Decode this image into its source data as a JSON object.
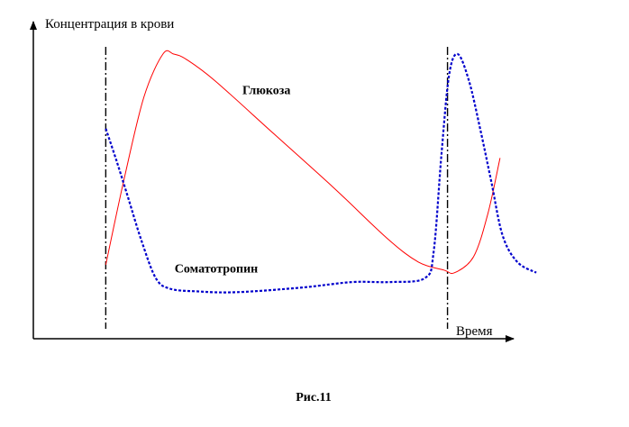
{
  "chart_data": {
    "type": "line",
    "ylabel": "Концентрация в крови",
    "xlabel": "Время",
    "caption": "Рис.11",
    "xlim": [
      0,
      100
    ],
    "ylim": [
      0,
      100
    ],
    "grid": false,
    "series": [
      {
        "name": "Глюкоза",
        "color": "#ff0000",
        "style": "solid",
        "points": [
          [
            14.2,
            21
          ],
          [
            17.9,
            54
          ],
          [
            21.7,
            84
          ],
          [
            25.4,
            100
          ],
          [
            27.5,
            100
          ],
          [
            30.0,
            98
          ],
          [
            35.6,
            90
          ],
          [
            47.2,
            70
          ],
          [
            58.8,
            50
          ],
          [
            69.3,
            31
          ],
          [
            75.5,
            22
          ],
          [
            80.5,
            19
          ],
          [
            82.6,
            18
          ],
          [
            86.3,
            24
          ],
          [
            89.1,
            40
          ],
          [
            91.5,
            61
          ]
        ]
      },
      {
        "name": "Соматотропин",
        "color": "#0000cc",
        "style": "dotted",
        "points": [
          [
            14.2,
            72
          ],
          [
            16.3,
            60
          ],
          [
            18.6,
            46
          ],
          [
            21.2,
            30
          ],
          [
            24.0,
            16
          ],
          [
            26.8,
            12
          ],
          [
            32.0,
            11
          ],
          [
            40.0,
            10.7
          ],
          [
            53.0,
            12.5
          ],
          [
            62.5,
            14.5
          ],
          [
            70.0,
            14.5
          ],
          [
            76.8,
            16
          ],
          [
            78.5,
            26
          ],
          [
            80.0,
            62
          ],
          [
            81.5,
            92
          ],
          [
            83.2,
            100
          ],
          [
            85.4,
            90
          ],
          [
            87.6,
            72
          ],
          [
            89.8,
            52
          ],
          [
            92.0,
            32
          ],
          [
            94.9,
            22
          ],
          [
            98.6,
            18
          ]
        ]
      }
    ],
    "annotations": [
      {
        "label": "Глюкоза",
        "x": 41.0,
        "y": 85
      },
      {
        "label": "Соматотропин",
        "x": 27.7,
        "y": 18
      }
    ],
    "markers": [
      14.2,
      81.2
    ]
  }
}
